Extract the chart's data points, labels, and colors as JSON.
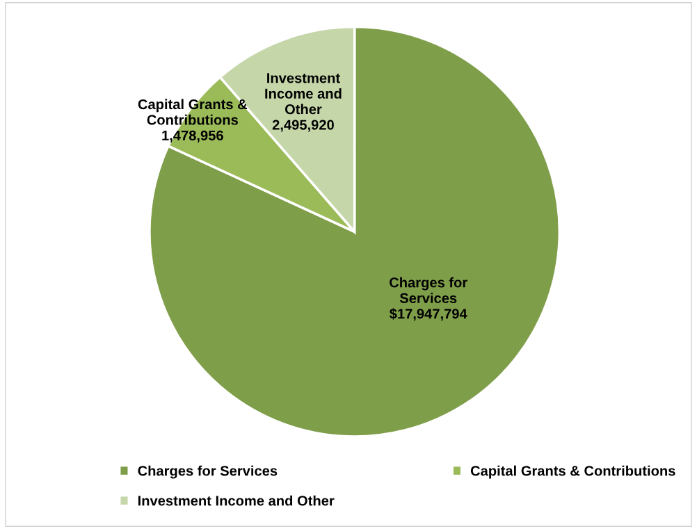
{
  "chart_data": {
    "type": "pie",
    "categories": [
      "Charges for Services",
      "Capital Grants & Contributions",
      "Investment Income and Other"
    ],
    "values": [
      17947794,
      1478956,
      2495920
    ],
    "value_labels": [
      "$17,947,794",
      "1,478,956",
      "2,495,920"
    ],
    "colors": [
      "#7f9e4a",
      "#9bbb59",
      "#c5d6a9"
    ],
    "legend": "bottom"
  }
}
